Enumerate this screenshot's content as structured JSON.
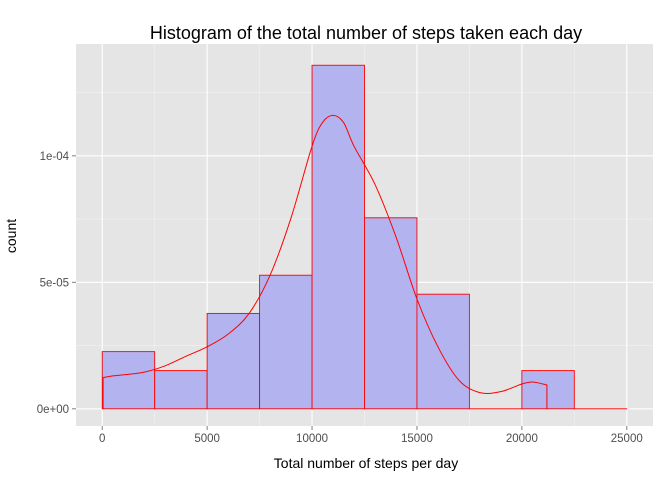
{
  "chart_data": {
    "type": "histogram",
    "title": "Histogram of the total number of steps taken each day",
    "xlabel": "Total number of steps per day",
    "ylabel": "count",
    "xlim": [
      -1250,
      26250
    ],
    "ylim": [
      -6.8e-06,
      0.0001442
    ],
    "x_ticks": [
      0,
      5000,
      10000,
      15000,
      20000,
      25000
    ],
    "x_tick_labels": [
      "0",
      "5000",
      "10000",
      "15000",
      "20000",
      "25000"
    ],
    "y_ticks": [
      0,
      5e-05,
      0.0001
    ],
    "y_tick_labels": [
      "0e+00",
      "5e-05",
      "1e-04"
    ],
    "grid": true,
    "bins": [
      {
        "start": 0,
        "end": 2500,
        "density": 2.26e-05
      },
      {
        "start": 2500,
        "end": 5000,
        "density": 1.51e-05
      },
      {
        "start": 5000,
        "end": 7500,
        "density": 3.77e-05
      },
      {
        "start": 7500,
        "end": 10000,
        "density": 5.28e-05
      },
      {
        "start": 10000,
        "end": 12500,
        "density": 0.0001358
      },
      {
        "start": 12500,
        "end": 15000,
        "density": 7.55e-05
      },
      {
        "start": 15000,
        "end": 17500,
        "density": 4.53e-05
      },
      {
        "start": 17500,
        "end": 20000,
        "density": 0
      },
      {
        "start": 20000,
        "end": 22500,
        "density": 1.51e-05
      },
      {
        "start": 22500,
        "end": 25000,
        "density": 0
      }
    ],
    "density_curve": {
      "x": [
        41,
        500,
        1000,
        2000,
        3000,
        4000,
        5000,
        6000,
        7000,
        8000,
        9000,
        10000,
        10500,
        11000,
        11500,
        12000,
        13000,
        14000,
        15000,
        16000,
        17000,
        18000,
        19000,
        20000,
        20500,
        21000,
        21194
      ],
      "y": [
        1.23e-05,
        1.3e-05,
        1.34e-05,
        1.45e-05,
        1.7e-05,
        2.08e-05,
        2.45e-05,
        2.95e-05,
        3.77e-05,
        5.28e-05,
        7.55e-05,
        0.0001038,
        0.0001132,
        0.000116,
        0.0001132,
        0.0001038,
        8.87e-05,
        6.8e-05,
        4.34e-05,
        2.45e-05,
        1.13e-05,
        6.4e-06,
        6.8e-06,
        9.8e-06,
        1.06e-05,
        9.8e-06,
        9.4e-06
      ]
    },
    "colors": {
      "panel": "#e5e5e5",
      "grid_major": "#ffffff",
      "grid_minor": "#f2f2f2",
      "bar_fill": "#b3b3f0",
      "bar_stroke": "#ff0000",
      "curve": "#ff0000",
      "tick_label": "#4d4d4d",
      "tick_mark": "#7f7f7f"
    }
  }
}
